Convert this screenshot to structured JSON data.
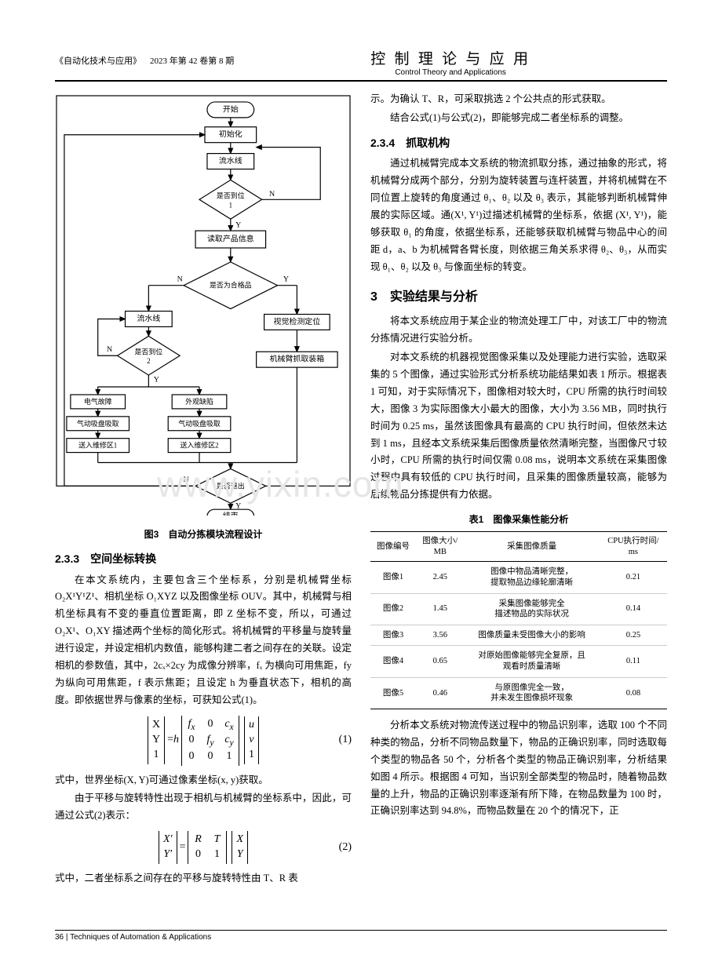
{
  "header": {
    "journal": "《自动化技术与应用》",
    "issue": "2023 年第 42 卷第 8 期",
    "title_cn": "控 制 理 论 与 应 用",
    "title_en": "Control Theory and Applications"
  },
  "flowchart": {
    "nodes": {
      "start": "开始",
      "init": "初始化",
      "line1": "流水线",
      "d1a": "是否到位",
      "d1b": "1",
      "read": "读取产品信息",
      "qual": "是否为合格品",
      "line2": "流水线",
      "vision": "视觉检测定位",
      "d2a": "是否到位",
      "d2b": "2",
      "arm": "机械臂抓取装箱",
      "elec": "电气故障",
      "appear": "外观缺陷",
      "suck1": "气动吸盘吸取",
      "suck2": "气动吸盘吸取",
      "zone1": "送入维修区1",
      "zone2": "送入维修区2",
      "exit": "是否退出",
      "end": "结束"
    },
    "labels": {
      "yes": "Y",
      "no": "N"
    }
  },
  "fig3_caption": "图3　自动分拣模块流程设计",
  "sec233": {
    "title": "2.3.3　空间坐标转换",
    "p1": "在本文系统内，主要包含三个坐标系，分别是机械臂坐标 O₂X¹Y¹Z¹、相机坐标 O₁XYZ 以及图像坐标 OUV。其中，机械臂与相机坐标具有不变的垂直位置距离，即 Z 坐标不变，所以，可通过 O₂X¹、O₁XY 描述两个坐标的简化形式。将机械臂的平移量与旋转量进行设定，并设定相机内数值，能够构建二者之间存在的关联。设定相机的参数值，其中，2cₓ×2cy 为成像分辨率，fₓ 为横向可用焦距，fy 为纵向可用焦距，f 表示焦距；且设定 h 为垂直状态下，相机的高度。即依据世界与像素的坐标，可获知公式(1)。",
    "p2": "式中，世界坐标(X, Y)可通过像素坐标(x, y)获取。",
    "p3": "由于平移与旋转特性出现于相机与机械臂的坐标系中，因此，可通过公式(2)表示：",
    "p4": "式中，二者坐标系之间存在的平移与旋转特性由 T、R 表"
  },
  "eq1_num": "(1)",
  "eq2_num": "(2)",
  "col2": {
    "p1": "示。为确认 T、R，可采取挑选 2 个公共点的形式获取。",
    "p2": "结合公式(1)与公式(2)，即能够完成二者坐标系的调整。"
  },
  "sec234": {
    "title": "2.3.4　抓取机构",
    "p1": "通过机械臂完成本文系统的物流抓取分拣，通过抽象的形式，将机械臂分成两个部分，分别为旋转装置与连杆装置，并将机械臂在不同位置上旋转的角度通过 θ₁、θ₂ 以及 θ₃ 表示，其能够判断机械臂伸展的实际区域。通(X¹, Y¹)过描述机械臂的坐标系，依据 (X¹, Y¹)，能够获取 θ₁ 的角度，依据坐标系，还能够获取机械臂与物品中心的间距 d，a、b 为机械臂各臂长度，则依据三角关系求得 θ₂、θ₃，从而实现 θ₁、θ₂ 以及 θ₃ 与像面坐标的转变。"
  },
  "sec3": {
    "title": "3　实验结果与分析",
    "p1": "将本文系统应用于某企业的物流处理工厂中，对该工厂中的物流分拣情况进行实验分析。",
    "p2": "对本文系统的机器视觉图像采集以及处理能力进行实验，选取采集的 5 个图像，通过实验形式分析系统功能结果如表 1 所示。根据表 1 可知，对于实际情况下，图像相对较大时，CPU 所需的执行时间较大，图像 3 为实际图像大小最大的图像，大小为 3.56 MB，同时执行时间为 0.25 ms，虽然该图像具有最高的 CPU 执行时间，但依然未达到 1 ms，且经本文系统采集后图像质量依然清晰完整，当图像尺寸较小时，CPU 所需的执行时间仅需 0.08 ms，说明本文系统在采集图像过程中具有较低的 CPU 执行时间，且采集的图像质量较高，能够为后续物品分拣提供有力依据。",
    "p3": "分析本文系统对物流传送过程中的物品识别率，选取 100 个不同种类的物品，分析不同物品数量下，物品的正确识别率，同时选取每个类型的物品各 50 个，分析各个类型的物品正确识别率，分析结果如图 4 所示。根据图 4 可知，当识别全部类型的物品时，随着物品数量的上升，物品的正确识别率逐渐有所下降，在物品数量为 100 时，正确识别率达到 94.8%，而物品数量在 20 个的情况下，正"
  },
  "table1": {
    "caption": "表1　图像采集性能分析",
    "columns": [
      "图像编号",
      "图像大小/\nMB",
      "采集图像质量",
      "CPU执行时间/\nms"
    ],
    "rows": [
      [
        "图像1",
        "2.45",
        "图像中物品清晰完整，\n提取物品边缘轮廓清晰",
        "0.21"
      ],
      [
        "图像2",
        "1.45",
        "采集图像能够完全\n描述物品的实际状况",
        "0.14"
      ],
      [
        "图像3",
        "3.56",
        "图像质量未受图像大小的影响",
        "0.25"
      ],
      [
        "图像4",
        "0.65",
        "对原始图像能够完全复原，且\n观看时质量清晰",
        "0.11"
      ],
      [
        "图像5",
        "0.46",
        "与原图像完全一致，\n并未发生图像损坏现象",
        "0.08"
      ]
    ]
  },
  "watermark": "www.yixin.com",
  "footer": {
    "page": "36",
    "tail": " | Techniques of Automation & Applications"
  }
}
